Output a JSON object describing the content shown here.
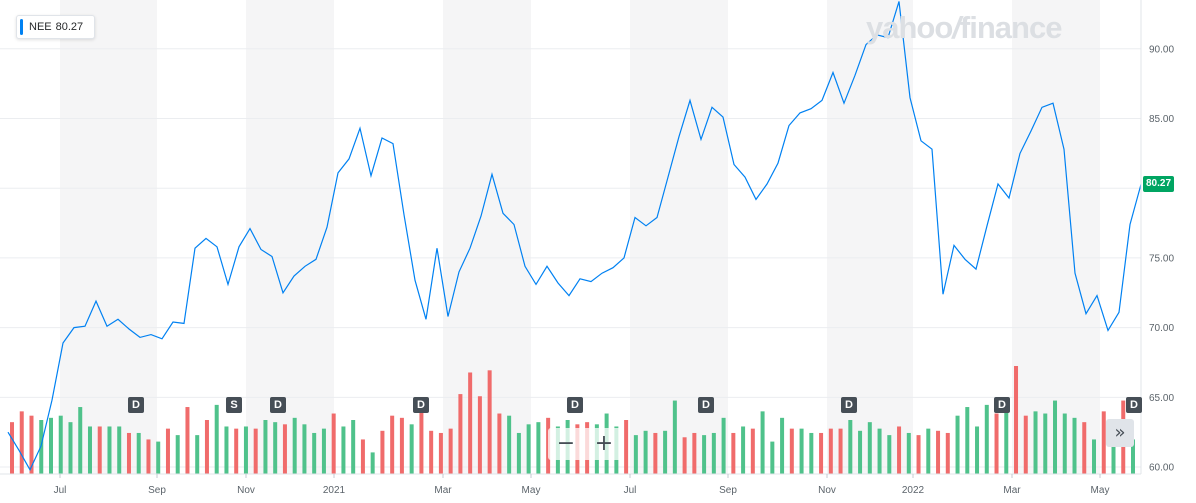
{
  "legend": {
    "symbol": "NEE",
    "price": "80.27",
    "color": "#0081f2"
  },
  "logo": {
    "text_a": "yahoo",
    "text_b": "/",
    "text_c": "finance"
  },
  "current_price_label": "80.27",
  "zoom": {
    "minus": "−",
    "plus": "+"
  },
  "scroll_right": "»",
  "events": [
    {
      "label": "D",
      "month": "Aug 2020"
    },
    {
      "label": "S",
      "month": "Oct 2020"
    },
    {
      "label": "D",
      "month": "Nov 2020"
    },
    {
      "label": "D",
      "month": "Feb 2021"
    },
    {
      "label": "D",
      "month": "Jun 2021"
    },
    {
      "label": "D",
      "month": "Aug 2021"
    },
    {
      "label": "D",
      "month": "Nov 2021"
    },
    {
      "label": "D",
      "month": "Mar 2022"
    },
    {
      "label": "D",
      "month": "May 2022"
    }
  ],
  "chart_data": {
    "type": "line",
    "title": "",
    "series": [
      {
        "name": "NEE",
        "color": "#0081f2"
      }
    ],
    "y_ticks": [
      "60.00",
      "65.00",
      "70.00",
      "75.00",
      "80.00",
      "85.00",
      "90.00"
    ],
    "ylim": [
      59.5,
      93.5
    ],
    "x_ticks": [
      "Jul",
      "Sep",
      "Nov",
      "2021",
      "Mar",
      "May",
      "Jul",
      "Sep",
      "Nov",
      "2022",
      "Mar",
      "May"
    ],
    "grid": true,
    "legend": "top-left",
    "price": [
      62.5,
      61.2,
      59.8,
      61.5,
      64.8,
      68.9,
      70.0,
      70.1,
      71.9,
      70.1,
      70.6,
      69.9,
      69.3,
      69.5,
      69.2,
      70.4,
      70.3,
      75.7,
      76.4,
      75.8,
      73.1,
      75.8,
      77.1,
      75.6,
      75.1,
      72.5,
      73.7,
      74.4,
      74.9,
      77.2,
      81.1,
      82.1,
      84.3,
      80.9,
      83.6,
      83.2,
      78.1,
      73.4,
      70.6,
      75.7,
      70.8,
      74.0,
      75.7,
      78.0,
      81.0,
      78.2,
      77.4,
      74.4,
      73.1,
      74.4,
      73.2,
      72.3,
      73.5,
      73.3,
      73.9,
      74.3,
      75.0,
      77.9,
      77.3,
      77.9,
      80.8,
      83.7,
      86.3,
      83.5,
      85.8,
      85.1,
      81.7,
      80.8,
      79.2,
      80.3,
      81.8,
      84.5,
      85.4,
      85.7,
      86.3,
      88.3,
      86.1,
      88.1,
      90.3,
      91.0,
      90.8,
      93.4,
      86.5,
      83.4,
      82.8,
      72.4,
      75.9,
      74.9,
      74.2,
      77.3,
      80.3,
      79.3,
      82.5,
      84.1,
      85.8,
      86.1,
      82.8,
      73.9,
      71.0,
      72.3,
      69.8,
      71.1,
      77.4,
      80.27
    ],
    "volume": [
      48,
      58,
      54,
      50,
      52,
      54,
      48,
      62,
      44,
      44,
      44,
      44,
      38,
      38,
      32,
      30,
      42,
      36,
      62,
      36,
      50,
      64,
      44,
      42,
      44,
      42,
      50,
      48,
      46,
      52,
      46,
      38,
      42,
      56,
      44,
      50,
      32,
      20,
      40,
      54,
      52,
      46,
      70,
      40,
      38,
      42,
      74,
      94,
      72,
      96,
      56,
      54,
      38,
      46,
      48,
      52,
      44,
      50,
      46,
      48,
      46,
      56,
      44,
      50,
      36,
      40,
      38,
      40,
      68,
      34,
      38,
      36,
      38,
      52,
      38,
      44,
      42,
      58,
      30,
      52,
      42,
      42,
      38,
      38,
      42,
      42,
      50,
      40,
      48,
      42,
      36,
      44,
      38,
      36,
      42,
      40,
      38,
      54,
      62,
      44,
      64,
      56,
      60,
      100,
      54,
      58,
      56,
      68,
      56,
      52,
      48,
      32,
      58,
      50,
      68,
      32
    ],
    "volume_up": [
      0,
      0,
      0,
      1,
      1,
      1,
      1,
      1,
      1,
      0,
      1,
      1,
      0,
      1,
      0,
      1,
      0,
      1,
      0,
      1,
      0,
      1,
      1,
      0,
      1,
      0,
      1,
      1,
      0,
      1,
      1,
      1,
      1,
      0,
      1,
      1,
      0,
      1,
      0,
      0,
      0,
      1,
      0,
      0,
      0,
      0,
      0,
      0,
      0,
      0,
      0,
      1,
      1,
      1,
      1,
      0,
      1,
      1,
      0,
      0,
      1,
      1,
      1,
      0,
      1,
      1,
      0,
      1,
      1,
      0,
      0,
      1,
      1,
      1,
      0,
      1,
      0,
      1,
      1,
      1,
      0,
      1,
      1,
      0,
      0,
      0,
      1,
      1,
      1,
      1,
      1,
      0,
      1,
      0,
      1,
      0,
      0,
      1,
      1,
      1,
      1,
      0,
      1,
      0,
      0,
      1,
      1,
      1,
      1,
      1,
      0,
      1,
      0,
      1,
      0,
      1
    ]
  }
}
